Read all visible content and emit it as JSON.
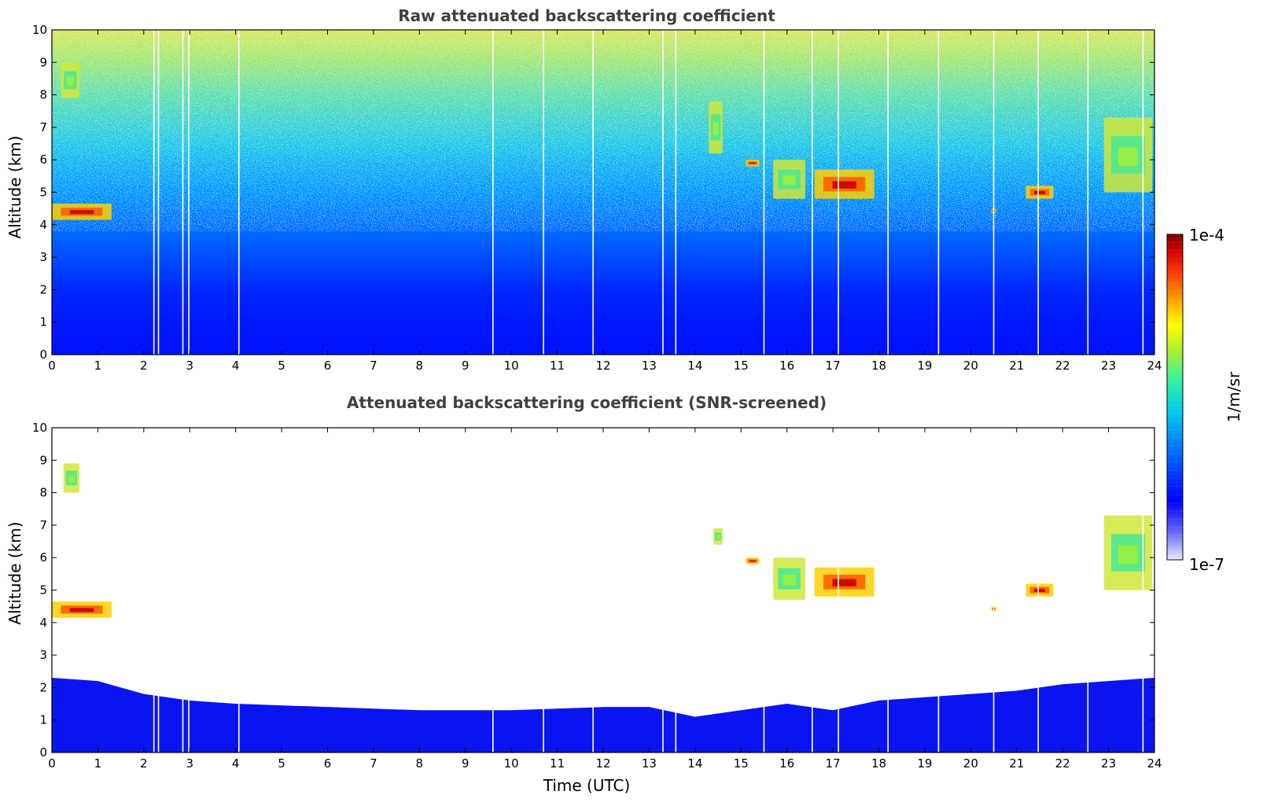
{
  "chart_data": [
    {
      "type": "heatmap",
      "title": "Raw attenuated backscattering coefficient",
      "xlabel": "",
      "ylabel": "Altitude (km)",
      "xlim": [
        0,
        24
      ],
      "ylim": [
        0,
        10
      ],
      "x_ticks": [
        "0",
        "1",
        "2",
        "3",
        "4",
        "5",
        "6",
        "7",
        "8",
        "9",
        "10",
        "11",
        "12",
        "13",
        "14",
        "15",
        "16",
        "17",
        "18",
        "19",
        "20",
        "21",
        "22",
        "23",
        "24"
      ],
      "y_ticks": [
        "0",
        "1",
        "2",
        "3",
        "4",
        "5",
        "6",
        "7",
        "8",
        "9",
        "10"
      ],
      "gaps_utc": [
        2.22,
        2.32,
        2.85,
        2.98,
        4.07,
        9.6,
        10.7,
        11.78,
        13.3,
        13.58,
        15.5,
        16.55,
        17.12,
        18.2,
        19.3,
        20.5,
        21.47,
        22.55,
        23.75
      ],
      "features": [
        {
          "t0": 0.0,
          "t1": 1.3,
          "z0": 4.15,
          "z1": 4.65,
          "level": "high"
        },
        {
          "t0": 0.2,
          "t1": 0.6,
          "z0": 7.9,
          "z1": 9.0,
          "level": "medium"
        },
        {
          "t0": 14.3,
          "t1": 14.6,
          "z0": 6.2,
          "z1": 7.8,
          "level": "medium"
        },
        {
          "t0": 15.1,
          "t1": 15.4,
          "z0": 5.8,
          "z1": 6.0,
          "level": "high"
        },
        {
          "t0": 15.7,
          "t1": 16.4,
          "z0": 4.8,
          "z1": 6.0,
          "level": "medium"
        },
        {
          "t0": 16.6,
          "t1": 17.9,
          "z0": 4.8,
          "z1": 5.7,
          "level": "high"
        },
        {
          "t0": 20.45,
          "t1": 20.55,
          "z0": 4.35,
          "z1": 4.5,
          "level": "high"
        },
        {
          "t0": 21.2,
          "t1": 21.8,
          "z0": 4.8,
          "z1": 5.2,
          "level": "high"
        },
        {
          "t0": 22.9,
          "t1": 23.95,
          "z0": 5.0,
          "z1": 7.3,
          "level": "medium"
        }
      ]
    },
    {
      "type": "heatmap",
      "title": "Attenuated backscattering coefficient (SNR-screened)",
      "xlabel": "Time (UTC)",
      "ylabel": "Altitude (km)",
      "xlim": [
        0,
        24
      ],
      "ylim": [
        0,
        10
      ],
      "x_ticks": [
        "0",
        "1",
        "2",
        "3",
        "4",
        "5",
        "6",
        "7",
        "8",
        "9",
        "10",
        "11",
        "12",
        "13",
        "14",
        "15",
        "16",
        "17",
        "18",
        "19",
        "20",
        "21",
        "22",
        "23",
        "24"
      ],
      "y_ticks": [
        "0",
        "1",
        "2",
        "3",
        "4",
        "5",
        "6",
        "7",
        "8",
        "9",
        "10"
      ],
      "boundary_layer_top_km": [
        {
          "t": 0,
          "z": 2.3
        },
        {
          "t": 1,
          "z": 2.2
        },
        {
          "t": 2,
          "z": 1.8
        },
        {
          "t": 3,
          "z": 1.6
        },
        {
          "t": 4,
          "z": 1.5
        },
        {
          "t": 6,
          "z": 1.4
        },
        {
          "t": 8,
          "z": 1.3
        },
        {
          "t": 10,
          "z": 1.3
        },
        {
          "t": 12,
          "z": 1.4
        },
        {
          "t": 13,
          "z": 1.4
        },
        {
          "t": 14,
          "z": 1.1
        },
        {
          "t": 15,
          "z": 1.3
        },
        {
          "t": 16,
          "z": 1.5
        },
        {
          "t": 17,
          "z": 1.3
        },
        {
          "t": 18,
          "z": 1.6
        },
        {
          "t": 19,
          "z": 1.7
        },
        {
          "t": 20,
          "z": 1.8
        },
        {
          "t": 21,
          "z": 1.9
        },
        {
          "t": 22,
          "z": 2.1
        },
        {
          "t": 23,
          "z": 2.2
        },
        {
          "t": 24,
          "z": 2.3
        }
      ],
      "features": [
        {
          "t0": 0.0,
          "t1": 1.3,
          "z0": 4.15,
          "z1": 4.65,
          "level": "high"
        },
        {
          "t0": 0.25,
          "t1": 0.6,
          "z0": 8.0,
          "z1": 8.9,
          "level": "medium"
        },
        {
          "t0": 14.4,
          "t1": 14.6,
          "z0": 6.4,
          "z1": 6.9,
          "level": "medium"
        },
        {
          "t0": 15.1,
          "t1": 15.4,
          "z0": 5.8,
          "z1": 6.0,
          "level": "high"
        },
        {
          "t0": 15.7,
          "t1": 16.4,
          "z0": 4.7,
          "z1": 6.0,
          "level": "medium"
        },
        {
          "t0": 16.6,
          "t1": 17.9,
          "z0": 4.8,
          "z1": 5.7,
          "level": "high"
        },
        {
          "t0": 20.45,
          "t1": 20.55,
          "z0": 4.35,
          "z1": 4.5,
          "level": "high"
        },
        {
          "t0": 21.2,
          "t1": 21.8,
          "z0": 4.8,
          "z1": 5.2,
          "level": "high"
        },
        {
          "t0": 22.9,
          "t1": 23.95,
          "z0": 5.0,
          "z1": 7.3,
          "level": "medium"
        }
      ]
    }
  ],
  "colorbar": {
    "label": "1/m/sr",
    "max_label": "1e-4",
    "min_label": "1e-7",
    "colors": [
      "#dcdcff",
      "#9696ff",
      "#0000ff",
      "#0064ff",
      "#00b4ff",
      "#00e6dc",
      "#32ff96",
      "#96ff32",
      "#ffff00",
      "#ffb400",
      "#ff5000",
      "#e60000",
      "#8c0000"
    ]
  }
}
